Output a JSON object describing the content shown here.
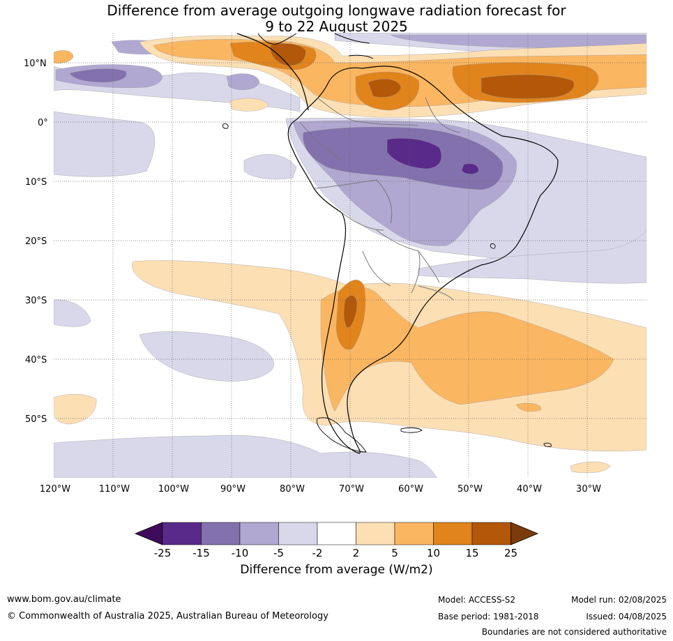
{
  "title": {
    "line1": "Difference from average outgoing longwave radiation forecast for",
    "line2": "9 to 22 August 2025"
  },
  "map": {
    "lon_labels": [
      "120°W",
      "110°W",
      "100°W",
      "90°W",
      "80°W",
      "70°W",
      "60°W",
      "50°W",
      "40°W",
      "30°W"
    ],
    "lat_labels": [
      "10°N",
      "0°",
      "10°S",
      "20°S",
      "30°S",
      "40°S",
      "50°S"
    ]
  },
  "colorbar": {
    "ticks": [
      "-25",
      "-15",
      "-10",
      "-5",
      "-2",
      "2",
      "5",
      "10",
      "15",
      "25"
    ],
    "colors": [
      "#3f0b5c",
      "#5a2a8a",
      "#8271ad",
      "#b0a8d1",
      "#d9d8eb",
      "#ffffff",
      "#fddfb4",
      "#fbb662",
      "#e1841c",
      "#b35808",
      "#7b3b0c"
    ],
    "title": "Difference from average (W/m2)"
  },
  "footer": {
    "url": "www.bom.gov.au/climate",
    "copyright": "© Commonwealth of Australia 2025, Australian Bureau of Meteorology",
    "model": "Model: ACCESS-S2",
    "base_period": "Base period: 1981-2018",
    "model_run": "Model run: 02/08/2025",
    "issued": "Issued: 04/08/2025",
    "disclaimer": "Boundaries are not considered authoritative"
  }
}
